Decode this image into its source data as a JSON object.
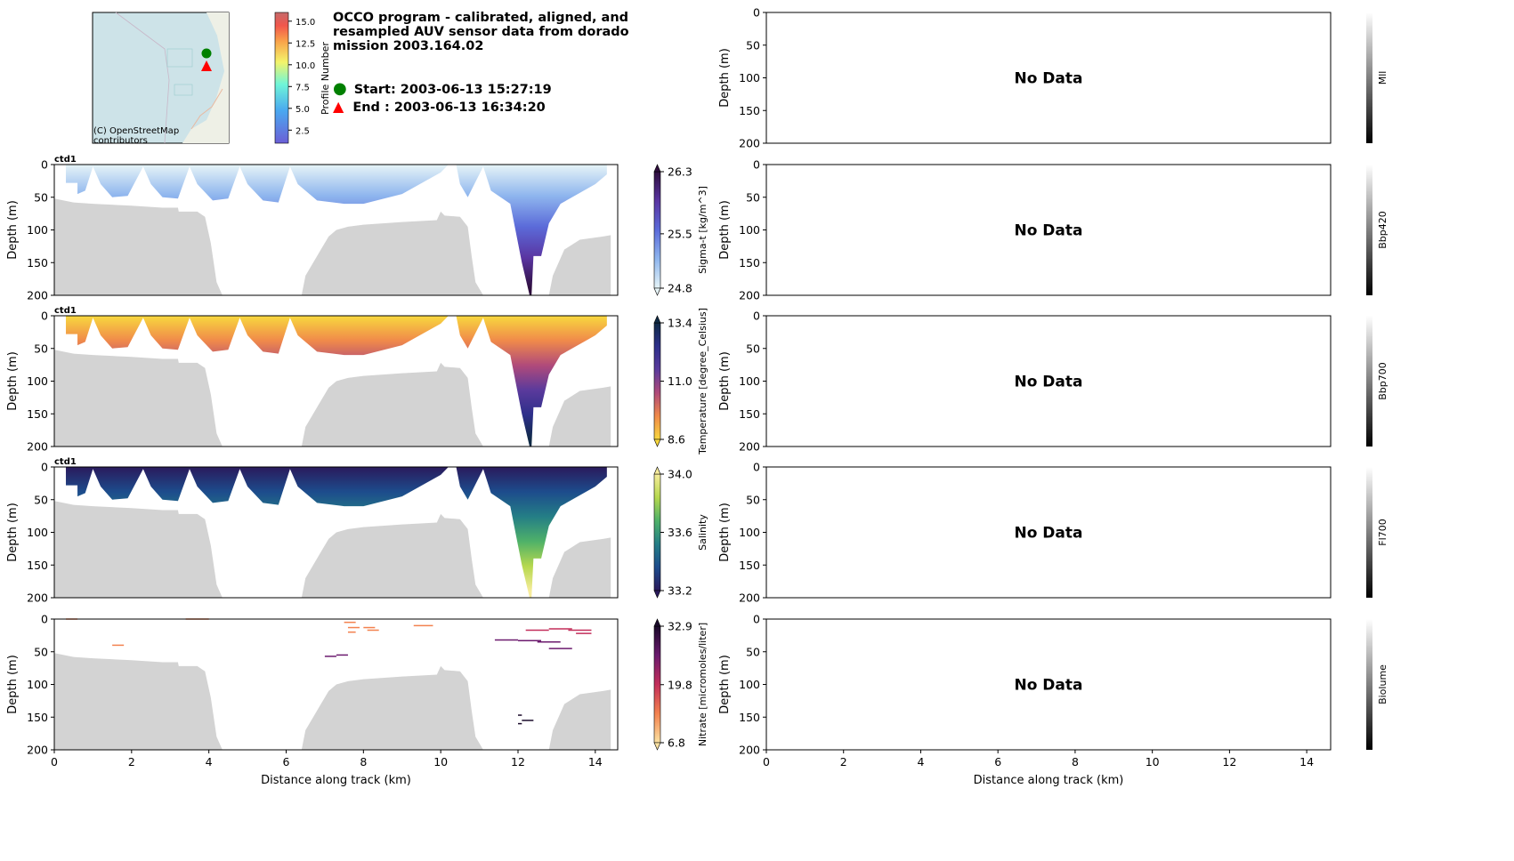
{
  "header": {
    "title": "OCCO program - calibrated, aligned, and resampled AUV sensor data from dorado mission 2003.164.02",
    "start_label": "Start: 2003-06-13 15:27:19",
    "end_label": "End  : 2003-06-13 16:34:20",
    "map_attribution_1": "(C) OpenStreetMap",
    "map_attribution_2": "contributors",
    "start_color": "#008000",
    "end_color": "#ff0000"
  },
  "profile_colorbar": {
    "label": "Profile Number",
    "ticks": [
      "2.5",
      "5.0",
      "7.5",
      "10.0",
      "12.5",
      "15.0"
    ],
    "range": [
      1,
      16
    ]
  },
  "chart_data": [
    {
      "type": "heatmap",
      "panel": "left",
      "tag": "ctd1",
      "ylabel": "Depth (m)",
      "xlabel": "",
      "ylim": [
        200,
        0
      ],
      "xlim": [
        0,
        14.6
      ],
      "yticks": [
        "0",
        "50",
        "100",
        "150",
        "200"
      ],
      "colorbar": {
        "label": "Sigma-t [kg/m^3]",
        "ticks": [
          "24.8",
          "25.5",
          "26.3"
        ],
        "range": [
          24.8,
          26.3
        ],
        "colors": [
          "#e6f4f7",
          "#8fb6ee",
          "#5b6bd9",
          "#5a35a2",
          "#2e0e3d"
        ]
      }
    },
    {
      "type": "heatmap",
      "panel": "left",
      "tag": "ctd1",
      "ylabel": "Depth (m)",
      "xlabel": "",
      "ylim": [
        200,
        0
      ],
      "xlim": [
        0,
        14.6
      ],
      "yticks": [
        "0",
        "50",
        "100",
        "150",
        "200"
      ],
      "colorbar": {
        "label": "Temperature [degree_Celsius]",
        "ticks": [
          "8.6",
          "11.0",
          "13.4"
        ],
        "range": [
          8.6,
          13.4
        ],
        "colors": [
          "#f8d83e",
          "#f08a4a",
          "#b04a7a",
          "#5a3a9c",
          "#2d2f8a",
          "#0f2a45"
        ]
      }
    },
    {
      "type": "heatmap",
      "panel": "left",
      "tag": "ctd1",
      "ylabel": "Depth (m)",
      "xlabel": "",
      "ylim": [
        200,
        0
      ],
      "xlim": [
        0,
        14.6
      ],
      "yticks": [
        "0",
        "50",
        "100",
        "150",
        "200"
      ],
      "colorbar": {
        "label": "Salinity",
        "ticks": [
          "33.2",
          "33.6",
          "34.0"
        ],
        "range": [
          33.2,
          34.0
        ],
        "colors": [
          "#2a1a5c",
          "#1d4c8c",
          "#247e86",
          "#4fb169",
          "#b6d84e",
          "#f7ec9c"
        ]
      }
    },
    {
      "type": "scatter",
      "panel": "left",
      "tag": "",
      "ylabel": "Depth (m)",
      "xlabel": "Distance along track (km)",
      "ylim": [
        200,
        0
      ],
      "xlim": [
        0,
        14.6
      ],
      "yticks": [
        "0",
        "50",
        "100",
        "150",
        "200"
      ],
      "xticks": [
        "0",
        "2",
        "4",
        "6",
        "8",
        "10",
        "12",
        "14"
      ],
      "colorbar": {
        "label": "Nitrate [micromoles/liter]",
        "ticks": [
          "6.8",
          "19.8",
          "32.9"
        ],
        "range": [
          6.8,
          32.9
        ],
        "colors": [
          "#fbe2a2",
          "#f3824f",
          "#c32e5a",
          "#6b1a6e",
          "#1a0a2a"
        ]
      },
      "segments": [
        [
          0.3,
          0.6,
          0,
          12
        ],
        [
          3.4,
          4.0,
          0,
          12
        ],
        [
          1.5,
          1.8,
          40,
          15
        ],
        [
          7.5,
          7.8,
          5,
          15
        ],
        [
          7.6,
          7.9,
          13,
          14
        ],
        [
          8.0,
          8.3,
          13,
          14
        ],
        [
          8.1,
          8.4,
          17,
          14
        ],
        [
          7.6,
          7.8,
          20,
          14
        ],
        [
          9.3,
          9.8,
          10,
          14
        ],
        [
          7.0,
          7.3,
          57,
          28
        ],
        [
          7.3,
          7.6,
          55,
          28
        ],
        [
          11.4,
          12.0,
          32,
          27
        ],
        [
          12.0,
          12.6,
          33,
          27
        ],
        [
          12.5,
          13.1,
          35,
          28
        ],
        [
          12.2,
          12.8,
          17,
          18
        ],
        [
          12.8,
          13.4,
          15,
          18
        ],
        [
          13.3,
          13.9,
          17,
          18
        ],
        [
          13.5,
          13.9,
          22,
          19
        ],
        [
          12.8,
          13.4,
          45,
          29
        ],
        [
          12.0,
          12.3,
          33,
          29
        ],
        [
          12.0,
          12.1,
          147,
          33
        ],
        [
          12.1,
          12.4,
          155,
          33
        ],
        [
          12.0,
          12.1,
          160,
          33
        ]
      ]
    },
    {
      "type": "heatmap",
      "panel": "right",
      "ylabel": "Depth (m)",
      "annotation": "No Data",
      "yticks": [
        "0",
        "50",
        "100",
        "150",
        "200"
      ],
      "colorbar": {
        "label": "Mll"
      }
    },
    {
      "type": "heatmap",
      "panel": "right",
      "ylabel": "Depth (m)",
      "annotation": "No Data",
      "yticks": [
        "0",
        "50",
        "100",
        "150",
        "200"
      ],
      "colorbar": {
        "label": "Bbp420"
      }
    },
    {
      "type": "heatmap",
      "panel": "right",
      "ylabel": "Depth (m)",
      "annotation": "No Data",
      "yticks": [
        "0",
        "50",
        "100",
        "150",
        "200"
      ],
      "colorbar": {
        "label": "Bbp700"
      }
    },
    {
      "type": "heatmap",
      "panel": "right",
      "ylabel": "Depth (m)",
      "annotation": "No Data",
      "yticks": [
        "0",
        "50",
        "100",
        "150",
        "200"
      ],
      "colorbar": {
        "label": "Fl700"
      }
    },
    {
      "type": "heatmap",
      "panel": "right",
      "ylabel": "Depth (m)",
      "xlabel": "Distance along track (km)",
      "annotation": "No Data",
      "yticks": [
        "0",
        "50",
        "100",
        "150",
        "200"
      ],
      "xticks": [
        "0",
        "2",
        "4",
        "6",
        "8",
        "10",
        "12",
        "14"
      ],
      "colorbar": {
        "label": "Biolume"
      }
    }
  ],
  "bathymetry_km_m": [
    [
      0,
      52
    ],
    [
      0.5,
      58
    ],
    [
      1,
      60
    ],
    [
      2,
      63
    ],
    [
      2.8,
      66
    ],
    [
      3.2,
      66
    ],
    [
      3.22,
      72
    ],
    [
      3.7,
      72
    ],
    [
      3.9,
      80
    ],
    [
      4.05,
      120
    ],
    [
      4.2,
      180
    ],
    [
      4.35,
      200
    ],
    [
      6.4,
      200
    ],
    [
      6.5,
      170
    ],
    [
      6.9,
      130
    ],
    [
      7.1,
      110
    ],
    [
      7.3,
      100
    ],
    [
      7.6,
      95
    ],
    [
      8,
      92
    ],
    [
      9,
      88
    ],
    [
      9.9,
      85
    ],
    [
      10,
      72
    ],
    [
      10.1,
      78
    ],
    [
      10.5,
      80
    ],
    [
      10.7,
      95
    ],
    [
      10.8,
      140
    ],
    [
      10.9,
      180
    ],
    [
      11.1,
      200
    ],
    [
      12.8,
      200
    ],
    [
      12.9,
      170
    ],
    [
      13.2,
      130
    ],
    [
      13.6,
      115
    ],
    [
      14.2,
      110
    ],
    [
      14.4,
      108
    ],
    [
      14.4,
      200
    ]
  ],
  "track_km_m": [
    [
      0.3,
      0
    ],
    [
      0.3,
      28
    ],
    [
      0.6,
      28
    ],
    [
      0.6,
      45
    ],
    [
      0.8,
      40
    ],
    [
      1.0,
      3
    ],
    [
      1.2,
      30
    ],
    [
      1.5,
      50
    ],
    [
      1.9,
      48
    ],
    [
      2.3,
      3
    ],
    [
      2.5,
      30
    ],
    [
      2.8,
      50
    ],
    [
      3.2,
      52
    ],
    [
      3.5,
      3
    ],
    [
      3.7,
      30
    ],
    [
      4.1,
      55
    ],
    [
      4.5,
      52
    ],
    [
      4.8,
      3
    ],
    [
      5.0,
      30
    ],
    [
      5.4,
      55
    ],
    [
      5.8,
      58
    ],
    [
      6.1,
      3
    ],
    [
      6.3,
      30
    ],
    [
      6.8,
      55
    ],
    [
      7.5,
      60
    ],
    [
      8,
      60
    ],
    [
      9,
      45
    ],
    [
      10,
      12
    ],
    [
      10.2,
      0
    ],
    [
      10.4,
      0
    ],
    [
      10.5,
      30
    ],
    [
      10.7,
      50
    ],
    [
      11.1,
      3
    ],
    [
      11.3,
      40
    ],
    [
      11.8,
      60
    ],
    [
      12.1,
      150
    ],
    [
      12.3,
      200
    ],
    [
      12.35,
      200
    ],
    [
      12.4,
      140
    ],
    [
      12.6,
      140
    ],
    [
      12.8,
      90
    ],
    [
      13.1,
      60
    ],
    [
      14.0,
      30
    ],
    [
      14.3,
      15
    ],
    [
      14.3,
      0
    ]
  ]
}
